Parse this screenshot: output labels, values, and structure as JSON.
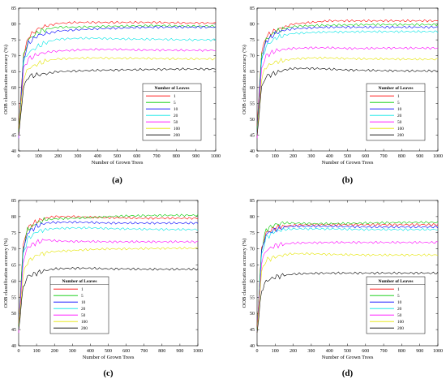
{
  "figure": {
    "shared": {
      "xlabel": "Number of Grown Trees",
      "ylabel": "OOB classification accuracy (%)",
      "xlim": [
        0,
        1000
      ],
      "ylim": [
        40,
        85
      ],
      "xticks": [
        0,
        100,
        200,
        300,
        400,
        500,
        600,
        700,
        800,
        900,
        1000
      ],
      "yticks": [
        40,
        45,
        50,
        55,
        60,
        65,
        70,
        75,
        80,
        85
      ],
      "legend_title": "Number of Leaves"
    }
  },
  "chart_data": [
    {
      "type": "line",
      "panel_label": "(a)",
      "legend_position": "lower-right",
      "grid": false,
      "series": [
        {
          "name": "1",
          "color": "#ff0000",
          "values": [
            47,
            70,
            76,
            78.5,
            79.5,
            80.2,
            80.5,
            80.5,
            80.5,
            80.5,
            80.5,
            80.3,
            80.3
          ]
        },
        {
          "name": "5",
          "color": "#00cc00",
          "values": [
            46,
            70,
            75,
            77.5,
            78.5,
            79,
            79,
            79.2,
            79.3,
            79.4,
            79.5,
            79.3,
            79.3
          ]
        },
        {
          "name": "10",
          "color": "#0000ff",
          "values": [
            44,
            69,
            74,
            76.5,
            77,
            77.8,
            78.2,
            78.5,
            78.7,
            78.9,
            79,
            79,
            79
          ]
        },
        {
          "name": "20",
          "color": "#00e5e5",
          "values": [
            44,
            68,
            71,
            73,
            74.5,
            75.2,
            75.5,
            75.5,
            75.3,
            75.2,
            75.2,
            75,
            75
          ]
        },
        {
          "name": "50",
          "color": "#ff00ff",
          "values": [
            44,
            66,
            69,
            70.5,
            71.2,
            71.5,
            71.8,
            72,
            72,
            71.8,
            71.8,
            71.7,
            71.7
          ]
        },
        {
          "name": "100",
          "color": "#e5e500",
          "values": [
            45,
            63,
            66,
            67.5,
            68.5,
            69,
            69.2,
            69.3,
            69.2,
            69.2,
            69.1,
            69,
            69
          ]
        },
        {
          "name": "200",
          "color": "#000000",
          "values": [
            45,
            60,
            63.5,
            64,
            64.5,
            65,
            65.2,
            65.4,
            65.5,
            65.6,
            65.7,
            65.8,
            65.8
          ]
        }
      ]
    },
    {
      "type": "line",
      "panel_label": "(b)",
      "legend_position": "lower-right",
      "grid": false,
      "series": [
        {
          "name": "1",
          "color": "#ff0000",
          "values": [
            48,
            71,
            76,
            78,
            79,
            80,
            80.5,
            81,
            81,
            81,
            81,
            81,
            81
          ]
        },
        {
          "name": "5",
          "color": "#00cc00",
          "values": [
            47,
            70,
            75,
            77.5,
            78.5,
            79.2,
            79.5,
            79.6,
            79.7,
            79.8,
            79.8,
            79.8,
            79.8
          ]
        },
        {
          "name": "10",
          "color": "#0000ff",
          "values": [
            46,
            69,
            74.5,
            77,
            78,
            78.5,
            78.8,
            79,
            79,
            79,
            79,
            79,
            79
          ]
        },
        {
          "name": "20",
          "color": "#00e5e5",
          "values": [
            45,
            68,
            73,
            75.5,
            76.5,
            77,
            77.3,
            77.5,
            77.5,
            77.6,
            77.6,
            77.6,
            77.6
          ]
        },
        {
          "name": "50",
          "color": "#ff00ff",
          "values": [
            44,
            66,
            70,
            71.5,
            72,
            72.3,
            72.5,
            72.5,
            72.3,
            72.3,
            72.4,
            72.4,
            72.4
          ]
        },
        {
          "name": "100",
          "color": "#e5e500",
          "values": [
            45,
            63,
            66.5,
            68,
            68.5,
            69,
            69.3,
            69.3,
            69.1,
            69,
            69,
            68.9,
            68.9
          ]
        },
        {
          "name": "200",
          "color": "#000000",
          "values": [
            45,
            60,
            63.5,
            64.5,
            65.5,
            66,
            66,
            65.8,
            65.5,
            65.4,
            65.3,
            65.2,
            65.2
          ]
        }
      ]
    },
    {
      "type": "line",
      "panel_label": "(c)",
      "legend_position": "lower-left",
      "grid": false,
      "series": [
        {
          "name": "1",
          "color": "#ff0000",
          "values": [
            47,
            71,
            76.5,
            78.5,
            79.5,
            80,
            80,
            79.8,
            79.7,
            79.6,
            79.5,
            79.5,
            79.5
          ]
        },
        {
          "name": "5",
          "color": "#00cc00",
          "values": [
            46,
            70,
            76,
            78,
            79,
            79.3,
            79.5,
            79.7,
            80,
            80.2,
            80.3,
            80.4,
            80.4
          ]
        },
        {
          "name": "10",
          "color": "#0000ff",
          "values": [
            45,
            69,
            75,
            77,
            78,
            78.2,
            78.3,
            78.2,
            78,
            78,
            78,
            78,
            78
          ]
        },
        {
          "name": "20",
          "color": "#00e5e5",
          "values": [
            45,
            68,
            73,
            75.3,
            76,
            76.3,
            76.5,
            76.5,
            76.3,
            76.2,
            76.1,
            76,
            76
          ]
        },
        {
          "name": "50",
          "color": "#ff00ff",
          "values": [
            44,
            66,
            70.5,
            72,
            72.8,
            72.5,
            72.3,
            72.3,
            72.2,
            72.2,
            72.2,
            72.2,
            72.2
          ]
        },
        {
          "name": "100",
          "color": "#e5e500",
          "values": [
            45,
            62,
            66,
            68,
            68.8,
            69.2,
            69.5,
            69.8,
            70,
            70,
            70.1,
            70.2,
            70.2
          ]
        },
        {
          "name": "200",
          "color": "#000000",
          "values": [
            45,
            58,
            61.5,
            62.5,
            63.3,
            63.8,
            64,
            64,
            63.8,
            63.8,
            63.7,
            63.7,
            63.7
          ]
        }
      ]
    },
    {
      "type": "line",
      "panel_label": "(d)",
      "legend_position": "lower-right",
      "grid": false,
      "series": [
        {
          "name": "1",
          "color": "#ff0000",
          "values": [
            46,
            70,
            75,
            76.5,
            77,
            77.3,
            77.5,
            77.5,
            77.5,
            77.5,
            77.5,
            77.5,
            77.5
          ]
        },
        {
          "name": "5",
          "color": "#00cc00",
          "values": [
            45,
            70,
            76,
            77.5,
            78,
            78,
            77.8,
            77.8,
            77.9,
            78,
            78.1,
            78.2,
            78.2
          ]
        },
        {
          "name": "10",
          "color": "#0000ff",
          "values": [
            44,
            69,
            74.5,
            76,
            76.7,
            77,
            77,
            77,
            76.9,
            76.8,
            76.8,
            76.8,
            76.8
          ]
        },
        {
          "name": "20",
          "color": "#00e5e5",
          "values": [
            44,
            68,
            73.5,
            75.5,
            76,
            76.2,
            76.2,
            76.2,
            76.1,
            76,
            76,
            76,
            76
          ]
        },
        {
          "name": "50",
          "color": "#ff00ff",
          "values": [
            44,
            66,
            69.5,
            71,
            71.5,
            71.8,
            71.9,
            72,
            72,
            72,
            72,
            72,
            72
          ]
        },
        {
          "name": "100",
          "color": "#e5e500",
          "values": [
            44,
            63,
            66.5,
            67.5,
            68.2,
            68.5,
            68.5,
            68.3,
            68.2,
            68.1,
            68.1,
            68.1,
            68.1
          ]
        },
        {
          "name": "200",
          "color": "#000000",
          "values": [
            44,
            57,
            60,
            61.3,
            61.8,
            62.2,
            62.4,
            62.5,
            62.5,
            62.5,
            62.5,
            62.5,
            62.5
          ]
        }
      ],
      "x": [
        0,
        25,
        50,
        100,
        150,
        200,
        300,
        400,
        500,
        600,
        700,
        850,
        1000
      ]
    }
  ],
  "shared_x": [
    0,
    25,
    50,
    100,
    150,
    200,
    300,
    400,
    500,
    600,
    700,
    850,
    1000
  ]
}
